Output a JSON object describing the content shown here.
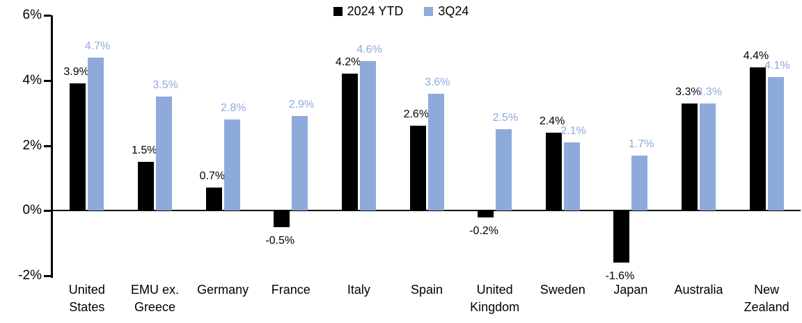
{
  "chart_data": {
    "type": "bar",
    "title": "",
    "categories": [
      "United States",
      "EMU ex. Greece",
      "Germany",
      "France",
      "Italy",
      "Spain",
      "United Kingdom",
      "Sweden",
      "Japan",
      "Australia",
      "New Zealand"
    ],
    "series": [
      {
        "name": "2024 YTD",
        "color": "#000000",
        "label_color": "#000000",
        "values": [
          3.9,
          1.5,
          0.7,
          -0.5,
          4.2,
          2.6,
          -0.2,
          2.4,
          -1.6,
          3.3,
          4.4
        ]
      },
      {
        "name": "3Q24",
        "color": "#8EAADB",
        "label_color": "#8EAADB",
        "values": [
          4.7,
          3.5,
          2.8,
          2.9,
          4.6,
          3.6,
          2.5,
          2.1,
          1.7,
          3.3,
          4.1
        ]
      }
    ],
    "value_suffix": "%",
    "ylim": [
      -2,
      6
    ],
    "ytick_step": 2,
    "ytick_labels": [
      "6%",
      "4%",
      "2%",
      "0%",
      "-2%"
    ],
    "xlabel": "",
    "ylabel": "",
    "grid": false,
    "data_labels": true,
    "legend_position": "top-center",
    "axis_color": "#000000",
    "background_color": "#FFFFFF"
  }
}
